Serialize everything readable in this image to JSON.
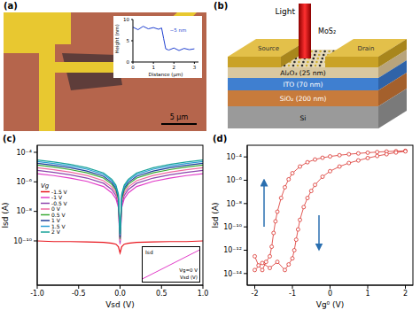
{
  "figure": {
    "panels": {
      "a": {
        "label": "(a)",
        "scale_bar": "5 μm",
        "inset": {
          "type": "line",
          "xlabel": "Distance (μm)",
          "ylabel": "Height (nm)",
          "annotations": [
            "~5 nm"
          ],
          "x": [
            0,
            0.25,
            0.5,
            0.75,
            1,
            1.25,
            1.4,
            1.5,
            1.6,
            1.75,
            2,
            2.25,
            2.5,
            2.75,
            3
          ],
          "values": [
            8.2,
            7.6,
            8.4,
            7.8,
            8.1,
            7.7,
            8.0,
            5.5,
            3.1,
            2.8,
            3.3,
            2.7,
            3.2,
            2.9,
            3.1
          ],
          "color": "#2040d0",
          "xlim": [
            0,
            3.2
          ],
          "xticks": [
            0,
            1,
            2,
            3
          ],
          "ylim": [
            0,
            10
          ],
          "yticks": [
            0,
            5,
            10
          ]
        }
      },
      "b": {
        "label": "(b)",
        "light": "Light",
        "material": "MoS₂",
        "source": "Source",
        "drain": "Drain",
        "layers": [
          "Al₂O₃ (25 nm)",
          "ITO (70 nm)",
          "SiO₂ (200 nm)",
          "Si"
        ]
      }
    }
  },
  "chart_data": [
    {
      "title": "(c)",
      "type": "line",
      "xlabel": "Vsd (V)",
      "ylabel": "Isd (A)",
      "log": "y",
      "legend": "left",
      "annotations": [
        "Vg"
      ],
      "x": [
        -1,
        -0.8,
        -0.6,
        -0.4,
        -0.2,
        -0.1,
        -0.05,
        -0.02,
        0,
        0.02,
        0.05,
        0.1,
        0.2,
        0.4,
        0.6,
        0.8,
        1
      ],
      "series": [
        {
          "name": "-1.5 V",
          "color": "#e8141c",
          "values": [
            1e-10,
            9e-11,
            9e-11,
            8.5e-11,
            8e-11,
            7e-11,
            6e-11,
            4e-11,
            1.5e-11,
            4e-11,
            6e-11,
            7e-11,
            8e-11,
            8.5e-11,
            9e-11,
            9e-11,
            1e-10
          ]
        },
        {
          "name": "-1 V",
          "color": "#e23cc8",
          "values": [
            3.6e-06,
            2.64e-06,
            1.8e-06,
            1.08e-06,
            4.8e-07,
            1.8e-07,
            7.2e-08,
            1.8e-08,
            6e-11,
            1.8e-08,
            7.2e-08,
            1.8e-07,
            4.8e-07,
            1.08e-06,
            1.8e-06,
            2.64e-06,
            3.6e-06
          ]
        },
        {
          "name": "-0.5 V",
          "color": "#8e44ad",
          "values": [
            6e-06,
            4.4e-06,
            3e-06,
            1.8e-06,
            8e-07,
            3e-07,
            1.2e-07,
            3e-08,
            8e-11,
            3e-08,
            1.2e-07,
            3e-07,
            8e-07,
            1.8e-06,
            3e-06,
            4.4e-06,
            6e-06
          ]
        },
        {
          "name": "0 V",
          "color": "#f06aa0",
          "values": [
            9e-06,
            6.6e-06,
            4.5e-06,
            2.7e-06,
            1.2e-06,
            4.5e-07,
            1.8e-07,
            4.5e-08,
            1e-10,
            4.5e-08,
            1.8e-07,
            4.5e-07,
            1.2e-06,
            2.7e-06,
            4.5e-06,
            6.6e-06,
            9e-06
          ]
        },
        {
          "name": "0.5 V",
          "color": "#3aaa35",
          "values": [
            1.35e-05,
            9.9e-06,
            6.75e-06,
            4.05e-06,
            1.8e-06,
            6.75e-07,
            2.7e-07,
            6.75e-08,
            1.35e-10,
            6.75e-08,
            2.7e-07,
            6.75e-07,
            1.8e-06,
            4.05e-06,
            6.75e-06,
            9.9e-06,
            1.35e-05
          ]
        },
        {
          "name": "1 V",
          "color": "#1f3f99",
          "values": [
            1.8e-05,
            1.32e-05,
            9e-06,
            5.4e-06,
            2.4e-06,
            9e-07,
            3.6e-07,
            9e-08,
            1.8e-10,
            9e-08,
            3.6e-07,
            9e-07,
            2.4e-06,
            5.4e-06,
            9e-06,
            1.32e-05,
            1.8e-05
          ]
        },
        {
          "name": "1.5 V",
          "color": "#2b9fd6",
          "values": [
            2.4e-05,
            1.76e-05,
            1.2e-05,
            7.2e-06,
            3.2e-06,
            1.2e-06,
            4.8e-07,
            1.2e-07,
            2.4e-10,
            1.2e-07,
            4.8e-07,
            1.2e-06,
            3.2e-06,
            7.2e-06,
            1.2e-05,
            1.76e-05,
            2.4e-05
          ]
        },
        {
          "name": "2 V",
          "color": "#1aa39a",
          "values": [
            3e-05,
            2.2e-05,
            1.5e-05,
            9e-06,
            4e-06,
            1.5e-06,
            6e-07,
            1.5e-07,
            3e-10,
            1.5e-07,
            6e-07,
            1.5e-06,
            4e-06,
            9e-06,
            1.5e-05,
            2.2e-05,
            3e-05
          ]
        }
      ],
      "xlim": [
        -1,
        1
      ],
      "xticks": [
        {
          "value": -1,
          "label": "-1.0"
        },
        -0.5,
        {
          "value": 0,
          "label": "0.0"
        },
        0.5,
        {
          "value": 1,
          "label": "1.0"
        }
      ],
      "ylim": [
        1e-13,
        0.0003
      ],
      "yticks": [
        {
          "value": 1e-10,
          "label": "10⁻¹⁰"
        },
        {
          "value": 1e-08,
          "label": "10⁻⁸"
        },
        {
          "value": 1e-06,
          "label": "10⁻⁶"
        },
        {
          "value": 0.0001,
          "label": "10⁻⁴"
        }
      ],
      "inset": {
        "type": "line",
        "xlabel": "Vsd (V)",
        "ylabel": "Isd",
        "annotations": [
          "Vg=0 V"
        ],
        "tick_labels": false,
        "x": [
          -0.2,
          -0.1,
          0,
          0.1,
          0.2
        ],
        "values": [
          -1,
          -0.5,
          0,
          0.5,
          1
        ],
        "color": "#e23cc8",
        "xlim": [
          -0.2,
          0.2
        ],
        "ylim": [
          -1.2,
          1.2
        ]
      }
    },
    {
      "title": "(d)",
      "type": "line",
      "xlabel": "Vg⁰ (V)",
      "ylabel": "Isd (A)",
      "log": "y",
      "series": [
        {
          "color": "#d9302b",
          "marker": "circle",
          "x": [
            -2,
            -1.9,
            -1.8,
            -1.7,
            -1.6,
            -1.55,
            -1.5,
            -1.45,
            -1.4,
            -1.3,
            -1.2,
            -1.1,
            -1.0,
            -0.8,
            -0.6,
            -0.4,
            -0.2,
            0,
            0.25,
            0.5,
            0.75,
            1,
            1.25,
            1.5,
            1.75,
            2
          ],
          "values": [
            3e-13,
            5e-14,
            2e-14,
            1e-13,
            3e-13,
            2e-12,
            3e-11,
            3e-10,
            2e-09,
            3e-08,
            2.5e-07,
            1.2e-06,
            4e-06,
            1.5e-05,
            3.5e-05,
            6e-05,
            8.5e-05,
            0.00011,
            0.00014,
            0.00017,
            0.0002,
            0.00023,
            0.00026,
            0.00029,
            0.00031,
            0.00033
          ]
        },
        {
          "color": "#d9302b",
          "marker": "circle",
          "x": [
            -2,
            -1.8,
            -1.6,
            -1.4,
            -1.2,
            -1.1,
            -1.0,
            -0.95,
            -0.9,
            -0.85,
            -0.8,
            -0.7,
            -0.6,
            -0.5,
            -0.4,
            -0.2,
            0,
            0.25,
            0.5,
            0.75,
            1,
            1.25,
            1.5,
            1.75,
            2
          ],
          "values": [
            2e-14,
            8e-14,
            3e-14,
            1e-13,
            2e-14,
            6e-14,
            2e-13,
            1e-12,
            8e-12,
            6e-11,
            4e-10,
            5e-09,
            3e-08,
            1.2e-07,
            4e-07,
            2e-06,
            6e-06,
            1.5e-05,
            3e-05,
            5e-05,
            8e-05,
            0.00012,
            0.00017,
            0.00024,
            0.0003
          ]
        }
      ],
      "xlim": [
        -2.2,
        2.2
      ],
      "xticks": [
        -2,
        -1,
        0,
        1,
        2
      ],
      "ylim": [
        1e-15,
        0.001
      ],
      "yticks": [
        {
          "value": 1e-14,
          "label": "10⁻¹⁴"
        },
        {
          "value": 1e-12,
          "label": "10⁻¹²"
        },
        {
          "value": 1e-10,
          "label": "10⁻¹⁰"
        },
        {
          "value": 1e-08,
          "label": "10⁻⁸"
        },
        {
          "value": 1e-06,
          "label": "10⁻⁶"
        },
        {
          "value": 0.0001,
          "label": "10⁻⁴"
        }
      ]
    }
  ]
}
